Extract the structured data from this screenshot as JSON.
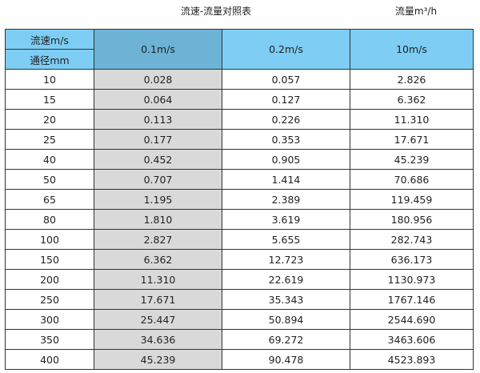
{
  "title": "流速-流量对照表",
  "unit": "流量m³/h",
  "colors": {
    "header": "#7dcdf4",
    "header_selected": "#6db3d6",
    "column_highlight": "#d9d9d9"
  },
  "header": {
    "velocity_label": "流速m/s",
    "diameter_label": "通径mm",
    "columns": [
      "0.1m/s",
      "0.2m/s",
      "10m/s"
    ]
  },
  "rows": [
    [
      "10",
      "0.028",
      "0.057",
      "2.826"
    ],
    [
      "15",
      "0.064",
      "0.127",
      "6.362"
    ],
    [
      "20",
      "0.113",
      "0.226",
      "11.310"
    ],
    [
      "25",
      "0.177",
      "0.353",
      "17.671"
    ],
    [
      "40",
      "0.452",
      "0.905",
      "45.239"
    ],
    [
      "50",
      "0.707",
      "1.414",
      "70.686"
    ],
    [
      "65",
      "1.195",
      "2.389",
      "119.459"
    ],
    [
      "80",
      "1.810",
      "3.619",
      "180.956"
    ],
    [
      "100",
      "2.827",
      "5.655",
      "282.743"
    ],
    [
      "150",
      "6.362",
      "12.723",
      "636.173"
    ],
    [
      "200",
      "11.310",
      "22.619",
      "1130.973"
    ],
    [
      "250",
      "17.671",
      "35.343",
      "1767.146"
    ],
    [
      "300",
      "25.447",
      "50.894",
      "2544.690"
    ],
    [
      "350",
      "34.636",
      "69.272",
      "3463.606"
    ],
    [
      "400",
      "45.239",
      "90.478",
      "4523.893"
    ]
  ]
}
